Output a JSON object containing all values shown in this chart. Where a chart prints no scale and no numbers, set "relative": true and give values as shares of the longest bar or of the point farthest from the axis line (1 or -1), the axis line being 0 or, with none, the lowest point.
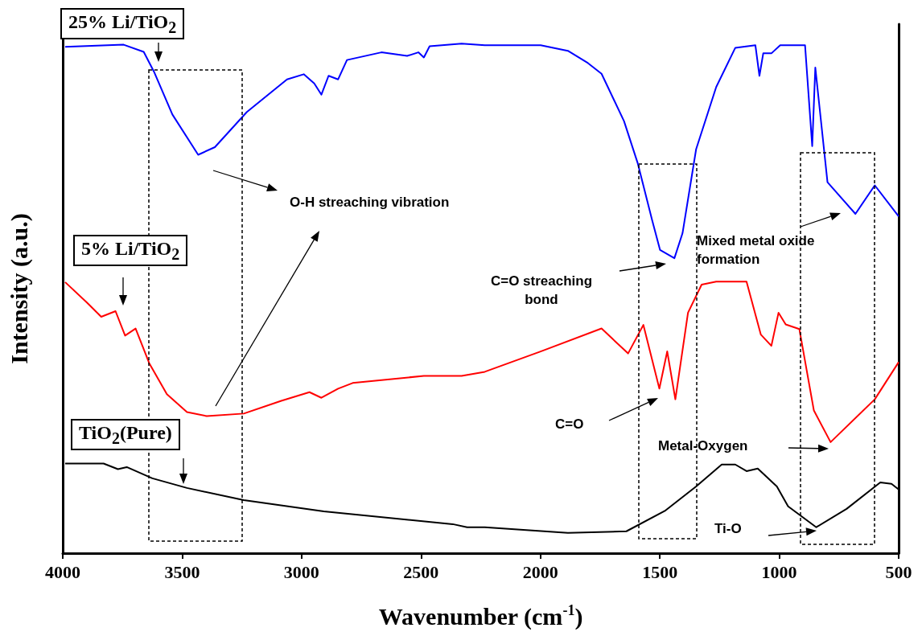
{
  "chart_data": {
    "type": "line",
    "xlabel": "Wavenumber (cm$^{-1}$)",
    "ylabel": "Intensity (a.u.)",
    "relative": true,
    "xlim": [
      4000,
      500
    ],
    "xticks": [
      4000,
      3500,
      3000,
      2500,
      2000,
      1500,
      1000,
      500
    ],
    "grid": false,
    "legend": false,
    "marker": "none",
    "line_style": "solid",
    "series": [
      {
        "name": "25% Li/TiO$_{2}$",
        "color": "#0000ff",
        "x": [
          3990,
          3745,
          3661,
          3618,
          3541,
          3433,
          3363,
          3229,
          3061,
          2991,
          2947,
          2917,
          2887,
          2847,
          2810,
          2666,
          2558,
          2511,
          2488,
          2464,
          2330,
          2233,
          1999,
          1885,
          1801,
          1744,
          1650,
          1593,
          1533,
          1499,
          1439,
          1405,
          1348,
          1264,
          1184,
          1100,
          1083,
          1067,
          1033,
          996,
          892,
          862,
          849,
          798,
          681,
          600,
          500
        ],
        "values": [
          0.994,
          0.998,
          0.984,
          0.945,
          0.861,
          0.782,
          0.797,
          0.866,
          0.93,
          0.94,
          0.922,
          0.9,
          0.937,
          0.93,
          0.968,
          0.983,
          0.976,
          0.983,
          0.973,
          0.995,
          1.0,
          0.997,
          0.997,
          0.986,
          0.962,
          0.941,
          0.848,
          0.766,
          0.655,
          0.595,
          0.579,
          0.628,
          0.793,
          0.915,
          0.992,
          0.997,
          0.937,
          0.981,
          0.981,
          0.997,
          0.997,
          0.799,
          0.953,
          0.728,
          0.666,
          0.722,
          0.661
        ]
      },
      {
        "name": "5% Li/TiO$_{2}$",
        "color": "#ff0000",
        "x": [
          3990,
          3899,
          3839,
          3779,
          3739,
          3695,
          3638,
          3564,
          3480,
          3397,
          3242,
          3085,
          2967,
          2917,
          2847,
          2786,
          2488,
          2330,
          2233,
          1999,
          1744,
          1633,
          1569,
          1502,
          1469,
          1435,
          1382,
          1325,
          1264,
          1137,
          1077,
          1033,
          1003,
          973,
          916,
          855,
          785,
          600,
          500
        ],
        "values": [
          0.532,
          0.492,
          0.464,
          0.475,
          0.427,
          0.441,
          0.373,
          0.312,
          0.277,
          0.269,
          0.274,
          0.299,
          0.316,
          0.305,
          0.323,
          0.334,
          0.348,
          0.348,
          0.356,
          0.396,
          0.441,
          0.392,
          0.448,
          0.323,
          0.396,
          0.302,
          0.472,
          0.527,
          0.533,
          0.533,
          0.429,
          0.407,
          0.472,
          0.449,
          0.44,
          0.28,
          0.218,
          0.302,
          0.375
        ]
      },
      {
        "name": "TiO$_{2}$(Pure)",
        "color": "#000000",
        "x": [
          3990,
          3829,
          3769,
          3732,
          3625,
          3480,
          3242,
          2907,
          2367,
          2307,
          2233,
          1885,
          1640,
          1476,
          1348,
          1241,
          1184,
          1137,
          1090,
          1010,
          963,
          845,
          718,
          577,
          530,
          500
        ],
        "values": [
          0.176,
          0.176,
          0.165,
          0.169,
          0.147,
          0.128,
          0.104,
          0.082,
          0.057,
          0.051,
          0.051,
          0.04,
          0.043,
          0.084,
          0.131,
          0.174,
          0.174,
          0.161,
          0.166,
          0.131,
          0.092,
          0.051,
          0.087,
          0.139,
          0.136,
          0.125
        ]
      }
    ],
    "annotations": [
      "O-H streaching vibration",
      "C=O streaching bond",
      "Mixed metal oxide formation",
      "C=O",
      "Metal-Oxygen",
      "Ti-O"
    ]
  }
}
